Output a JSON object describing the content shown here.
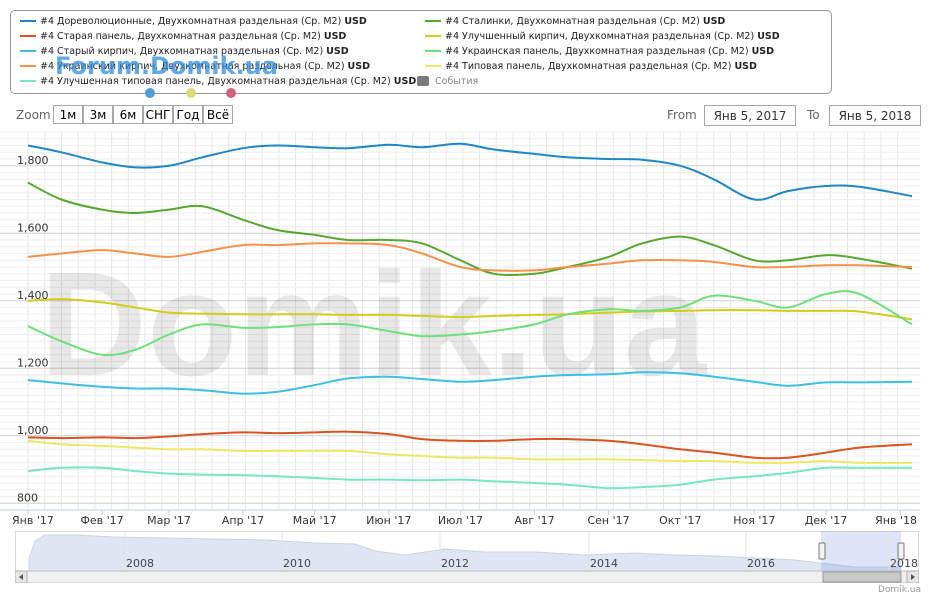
{
  "legend": {
    "items": [
      {
        "label": "#4 Дореволюционные, Двухкомнатная раздельная (Ср. M2)",
        "unit": "USD",
        "color": "#1f86c8"
      },
      {
        "label": "#4 Старая панель, Двухкомнатная раздельная (Ср. M2)",
        "unit": "USD",
        "color": "#d9541e"
      },
      {
        "label": "#4 Старый кирпич, Двухкомнатная раздельная (Ср. M2)",
        "unit": "USD",
        "color": "#3cc0e6"
      },
      {
        "label": "#4 Украинский кирпич, Двухкомнатная раздельная (Ср. M2)",
        "unit": "USD",
        "color": "#f4914c"
      },
      {
        "label": "#4 Улучшенная типовая панель, Двухкомнатная раздельная (Ср. M2)",
        "unit": "USD",
        "color": "#77e6c4"
      },
      {
        "label": "#4 Сталинки, Двухкомнатная раздельная (Ср. M2)",
        "unit": "USD",
        "color": "#56a82e"
      },
      {
        "label": "#4 Улучшенный кирпич, Двухкомнатная раздельная (Ср. M2)",
        "unit": "USD",
        "color": "#d4cc1a"
      },
      {
        "label": "#4 Украинская панель, Двухкомнатная раздельная (Ср. M2)",
        "unit": "USD",
        "color": "#6ee07a"
      },
      {
        "label": "#4 Типовая панель, Двухкомнатная раздельная (Ср. M2)",
        "unit": "USD",
        "color": "#ece863"
      }
    ],
    "events_label": "События",
    "events_color": "#7a7a7a"
  },
  "watermarks": {
    "forum": "Forum.Domik.ua",
    "big": "Domik.ua",
    "credit": "Domik.ua"
  },
  "zoom": {
    "label": "Zoom",
    "buttons": [
      "1м",
      "3м",
      "6м",
      "СНГ",
      "Год",
      "Всё"
    ]
  },
  "range": {
    "from_label": "From",
    "from_value": "Янв 5, 2017",
    "to_label": "To",
    "to_value": "Янв 5, 2018"
  },
  "chart_data": {
    "type": "line",
    "y_ticks": [
      800,
      1000,
      1200,
      1400,
      1600,
      1800
    ],
    "y_tick_labels": [
      "800",
      "1,000",
      "1,200",
      "1,400",
      "1,600",
      "1,800"
    ],
    "ylim": [
      780,
      1900
    ],
    "x_tick_labels": [
      "Янв '17",
      "Фев '17",
      "Мар '17",
      "Апр '17",
      "Май '17",
      "Июн '17",
      "Июл '17",
      "Авг '17",
      "Сен '17",
      "Окт '17",
      "Ноя '17",
      "Дек '17",
      "Янв '18"
    ],
    "x_tick_dates": [
      "2017-01-01",
      "2017-02-01",
      "2017-03-01",
      "2017-04-01",
      "2017-05-01",
      "2017-06-01",
      "2017-07-01",
      "2017-08-01",
      "2017-09-01",
      "2017-10-01",
      "2017-11-01",
      "2017-12-01",
      "2018-01-01"
    ],
    "xlim": [
      "2017-01-01",
      "2018-01-06"
    ],
    "grid": true,
    "series": [
      {
        "name": "#4 Дореволюционные, Двухкомнатная раздельная (Ср. M2)",
        "color": "#1f86c8",
        "x": [
          "2017-01-01",
          "2017-01-15",
          "2017-02-01",
          "2017-02-15",
          "2017-03-01",
          "2017-03-15",
          "2017-04-01",
          "2017-04-15",
          "2017-05-01",
          "2017-05-15",
          "2017-06-01",
          "2017-06-15",
          "2017-07-01",
          "2017-07-15",
          "2017-08-01",
          "2017-08-15",
          "2017-09-01",
          "2017-09-15",
          "2017-10-01",
          "2017-10-15",
          "2017-11-01",
          "2017-11-15",
          "2017-12-01",
          "2017-12-15",
          "2018-01-06"
        ],
        "y": [
          1860,
          1840,
          1810,
          1795,
          1800,
          1825,
          1852,
          1860,
          1855,
          1852,
          1862,
          1855,
          1865,
          1848,
          1835,
          1825,
          1820,
          1818,
          1800,
          1760,
          1700,
          1725,
          1740,
          1738,
          1710
        ]
      },
      {
        "name": "#4 Сталинки, Двухкомнатная раздельная (Ср. M2)",
        "color": "#56a82e",
        "x": [
          "2017-01-01",
          "2017-01-15",
          "2017-02-01",
          "2017-02-15",
          "2017-03-01",
          "2017-03-15",
          "2017-04-01",
          "2017-04-15",
          "2017-05-01",
          "2017-05-15",
          "2017-06-01",
          "2017-06-15",
          "2017-07-01",
          "2017-07-15",
          "2017-08-01",
          "2017-08-15",
          "2017-09-01",
          "2017-09-15",
          "2017-10-01",
          "2017-10-15",
          "2017-11-01",
          "2017-11-15",
          "2017-12-01",
          "2017-12-15",
          "2018-01-06"
        ],
        "y": [
          1750,
          1700,
          1670,
          1660,
          1670,
          1680,
          1640,
          1610,
          1595,
          1580,
          1580,
          1570,
          1520,
          1480,
          1480,
          1500,
          1530,
          1570,
          1590,
          1565,
          1520,
          1520,
          1535,
          1525,
          1495
        ]
      },
      {
        "name": "#4 Украинский кирпич, Двухкомнатная раздельная (Ср. M2)",
        "color": "#f4914c",
        "x": [
          "2017-01-01",
          "2017-01-15",
          "2017-02-01",
          "2017-02-15",
          "2017-03-01",
          "2017-03-15",
          "2017-04-01",
          "2017-04-15",
          "2017-05-01",
          "2017-05-15",
          "2017-06-01",
          "2017-06-15",
          "2017-07-01",
          "2017-07-15",
          "2017-08-01",
          "2017-08-15",
          "2017-09-01",
          "2017-09-15",
          "2017-10-01",
          "2017-10-15",
          "2017-11-01",
          "2017-11-15",
          "2017-12-01",
          "2017-12-15",
          "2018-01-06"
        ],
        "y": [
          1530,
          1540,
          1550,
          1540,
          1530,
          1545,
          1565,
          1565,
          1570,
          1570,
          1565,
          1540,
          1500,
          1490,
          1490,
          1500,
          1510,
          1520,
          1520,
          1515,
          1500,
          1500,
          1505,
          1505,
          1500
        ]
      },
      {
        "name": "#4 Улучшенный кирпич, Двухкомнатная раздельная (Ср. M2)",
        "color": "#d4cc1a",
        "x": [
          "2017-01-01",
          "2017-01-15",
          "2017-02-01",
          "2017-02-15",
          "2017-03-01",
          "2017-03-15",
          "2017-04-01",
          "2017-04-15",
          "2017-05-01",
          "2017-05-15",
          "2017-06-01",
          "2017-06-15",
          "2017-07-01",
          "2017-07-15",
          "2017-08-01",
          "2017-08-15",
          "2017-09-01",
          "2017-09-15",
          "2017-10-01",
          "2017-10-15",
          "2017-11-01",
          "2017-11-15",
          "2017-12-01",
          "2017-12-15",
          "2018-01-06"
        ],
        "y": [
          1400,
          1405,
          1395,
          1380,
          1365,
          1362,
          1360,
          1360,
          1360,
          1358,
          1358,
          1355,
          1352,
          1355,
          1358,
          1360,
          1365,
          1368,
          1370,
          1372,
          1372,
          1370,
          1370,
          1368,
          1345
        ]
      },
      {
        "name": "#4 Украинская панель, Двухкомнатная раздельная (Ср. M2)",
        "color": "#6ee07a",
        "x": [
          "2017-01-01",
          "2017-01-15",
          "2017-02-01",
          "2017-02-15",
          "2017-03-01",
          "2017-03-15",
          "2017-04-01",
          "2017-04-15",
          "2017-05-01",
          "2017-05-15",
          "2017-06-01",
          "2017-06-15",
          "2017-07-01",
          "2017-07-15",
          "2017-08-01",
          "2017-08-15",
          "2017-09-01",
          "2017-09-15",
          "2017-10-01",
          "2017-10-15",
          "2017-11-01",
          "2017-11-15",
          "2017-12-01",
          "2017-12-15",
          "2018-01-06"
        ],
        "y": [
          1325,
          1280,
          1240,
          1255,
          1300,
          1330,
          1320,
          1322,
          1330,
          1330,
          1310,
          1295,
          1300,
          1310,
          1330,
          1360,
          1375,
          1370,
          1380,
          1415,
          1400,
          1380,
          1420,
          1420,
          1330
        ]
      },
      {
        "name": "#4 Старый кирпич, Двухкомнатная раздельная (Ср. M2)",
        "color": "#3cc0e6",
        "x": [
          "2017-01-01",
          "2017-01-15",
          "2017-02-01",
          "2017-02-15",
          "2017-03-01",
          "2017-03-15",
          "2017-04-01",
          "2017-04-15",
          "2017-05-01",
          "2017-05-15",
          "2017-06-01",
          "2017-06-15",
          "2017-07-01",
          "2017-07-15",
          "2017-08-01",
          "2017-08-15",
          "2017-09-01",
          "2017-09-15",
          "2017-10-01",
          "2017-10-15",
          "2017-11-01",
          "2017-11-15",
          "2017-12-01",
          "2017-12-15",
          "2018-01-06"
        ],
        "y": [
          1165,
          1155,
          1145,
          1140,
          1140,
          1135,
          1125,
          1130,
          1150,
          1170,
          1175,
          1168,
          1160,
          1165,
          1175,
          1180,
          1182,
          1188,
          1185,
          1175,
          1160,
          1148,
          1158,
          1158,
          1160
        ]
      },
      {
        "name": "#4 Старая панель, Двухкомнатная раздельная (Ср. M2)",
        "color": "#d9541e",
        "x": [
          "2017-01-01",
          "2017-01-15",
          "2017-02-01",
          "2017-02-15",
          "2017-03-01",
          "2017-03-15",
          "2017-04-01",
          "2017-04-15",
          "2017-05-01",
          "2017-05-15",
          "2017-06-01",
          "2017-06-15",
          "2017-07-01",
          "2017-07-15",
          "2017-08-01",
          "2017-08-15",
          "2017-09-01",
          "2017-09-15",
          "2017-10-01",
          "2017-10-15",
          "2017-11-01",
          "2017-11-15",
          "2017-12-01",
          "2017-12-15",
          "2018-01-06"
        ],
        "y": [
          995,
          993,
          995,
          993,
          998,
          1005,
          1010,
          1008,
          1010,
          1012,
          1005,
          990,
          985,
          985,
          990,
          990,
          985,
          975,
          960,
          950,
          935,
          935,
          950,
          965,
          975
        ]
      },
      {
        "name": "#4 Типовая панель, Двухкомнатная раздельная (Ср. M2)",
        "color": "#ece863",
        "x": [
          "2017-01-01",
          "2017-01-15",
          "2017-02-01",
          "2017-02-15",
          "2017-03-01",
          "2017-03-15",
          "2017-04-01",
          "2017-04-15",
          "2017-05-01",
          "2017-05-15",
          "2017-06-01",
          "2017-06-15",
          "2017-07-01",
          "2017-07-15",
          "2017-08-01",
          "2017-08-15",
          "2017-09-01",
          "2017-09-15",
          "2017-10-01",
          "2017-10-15",
          "2017-11-01",
          "2017-11-15",
          "2017-12-01",
          "2017-12-15",
          "2018-01-06"
        ],
        "y": [
          985,
          975,
          970,
          965,
          960,
          960,
          955,
          955,
          955,
          955,
          945,
          940,
          935,
          935,
          930,
          930,
          930,
          928,
          925,
          925,
          920,
          920,
          925,
          920,
          920
        ]
      },
      {
        "name": "#4 Улучшенная типовая панель, Двухкомнатная раздельная (Ср. M2)",
        "color": "#77e6c4",
        "x": [
          "2017-01-01",
          "2017-01-15",
          "2017-02-01",
          "2017-02-15",
          "2017-03-01",
          "2017-03-15",
          "2017-04-01",
          "2017-04-15",
          "2017-05-01",
          "2017-05-15",
          "2017-06-01",
          "2017-06-15",
          "2017-07-01",
          "2017-07-15",
          "2017-08-01",
          "2017-08-15",
          "2017-09-01",
          "2017-09-15",
          "2017-10-01",
          "2017-10-15",
          "2017-11-01",
          "2017-11-15",
          "2017-12-01",
          "2017-12-15",
          "2018-01-06"
        ],
        "y": [
          895,
          905,
          905,
          895,
          888,
          885,
          883,
          880,
          875,
          870,
          870,
          868,
          870,
          865,
          860,
          855,
          845,
          848,
          855,
          870,
          880,
          890,
          905,
          905,
          905
        ]
      }
    ],
    "navigator": {
      "x_tick_labels": [
        "2008",
        "2010",
        "2012",
        "2014",
        "2016",
        "2018"
      ]
    }
  }
}
